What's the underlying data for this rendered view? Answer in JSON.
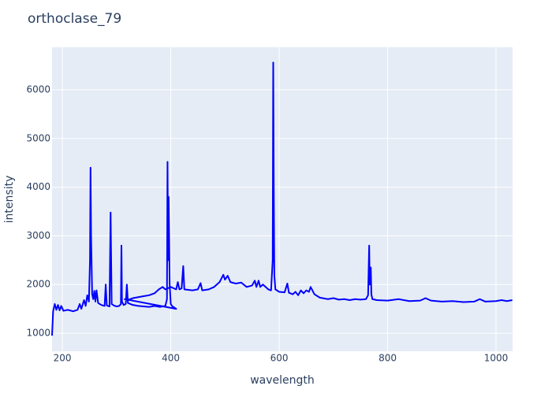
{
  "chart_data": {
    "type": "line",
    "title": "orthoclase_79",
    "x_label": "wavelength",
    "y_label": "intensity",
    "color": "#0000ff",
    "grid": true,
    "xlim": [
      181,
      1030.5
    ],
    "ylim": [
      628,
      6874
    ],
    "xticks": [
      200,
      400,
      600,
      800,
      1000
    ],
    "yticks": [
      1000,
      2000,
      3000,
      4000,
      5000,
      6000
    ],
    "x": [
      181,
      183,
      186,
      189,
      192,
      195,
      198,
      202,
      210,
      220,
      228,
      232,
      235,
      240,
      243,
      246,
      249,
      251,
      252,
      253,
      255,
      257,
      259,
      261,
      263,
      266,
      272,
      278,
      280,
      282,
      287,
      289,
      291,
      295,
      300,
      305,
      308,
      309,
      310,
      313,
      317,
      319,
      321,
      330,
      340,
      350,
      360,
      370,
      380,
      390,
      393,
      394,
      395,
      396,
      397,
      398,
      400,
      403,
      406,
      410,
      315,
      320,
      330,
      340,
      350,
      360,
      370,
      378,
      385,
      390,
      400,
      410,
      413,
      416,
      420,
      423,
      425,
      440,
      450,
      455,
      458,
      470,
      480,
      490,
      497,
      500,
      505,
      510,
      520,
      530,
      540,
      550,
      555,
      558,
      562,
      565,
      570,
      580,
      585,
      588,
      589,
      590,
      591,
      593,
      600,
      610,
      615,
      618,
      625,
      630,
      635,
      640,
      645,
      650,
      655,
      658,
      665,
      675,
      690,
      700,
      710,
      720,
      730,
      740,
      750,
      760,
      764,
      766,
      767,
      769,
      770,
      772,
      780,
      800,
      820,
      840,
      860,
      870,
      880,
      900,
      920,
      940,
      960,
      970,
      980,
      1000,
      1010,
      1020,
      1030
    ],
    "values": [
      950,
      1450,
      1600,
      1480,
      1580,
      1470,
      1560,
      1460,
      1480,
      1450,
      1480,
      1600,
      1500,
      1680,
      1560,
      1780,
      1650,
      2500,
      4400,
      3000,
      1800,
      1700,
      1870,
      1650,
      1880,
      1620,
      1580,
      1560,
      2000,
      1570,
      1550,
      3480,
      1600,
      1570,
      1550,
      1560,
      1600,
      2800,
      1650,
      1580,
      1600,
      2000,
      1620,
      1580,
      1560,
      1550,
      1540,
      1560,
      1540,
      1560,
      1700,
      4520,
      2500,
      3800,
      3000,
      2000,
      1600,
      1550,
      1530,
      1500,
      1700,
      1680,
      1720,
      1740,
      1760,
      1780,
      1820,
      1900,
      1950,
      1900,
      1950,
      1900,
      2050,
      1900,
      1920,
      2380,
      1900,
      1880,
      1900,
      2030,
      1880,
      1900,
      1950,
      2050,
      2200,
      2100,
      2180,
      2050,
      2020,
      2040,
      1950,
      1980,
      2080,
      1950,
      2080,
      1950,
      2000,
      1900,
      1880,
      2500,
      6560,
      4000,
      2200,
      1900,
      1850,
      1840,
      2020,
      1830,
      1800,
      1850,
      1780,
      1880,
      1820,
      1880,
      1850,
      1950,
      1800,
      1730,
      1700,
      1720,
      1690,
      1700,
      1680,
      1700,
      1690,
      1700,
      1780,
      2800,
      2000,
      2350,
      1800,
      1700,
      1680,
      1670,
      1700,
      1660,
      1670,
      1720,
      1670,
      1650,
      1660,
      1640,
      1650,
      1700,
      1650,
      1660,
      1680,
      1660,
      1680
    ]
  }
}
